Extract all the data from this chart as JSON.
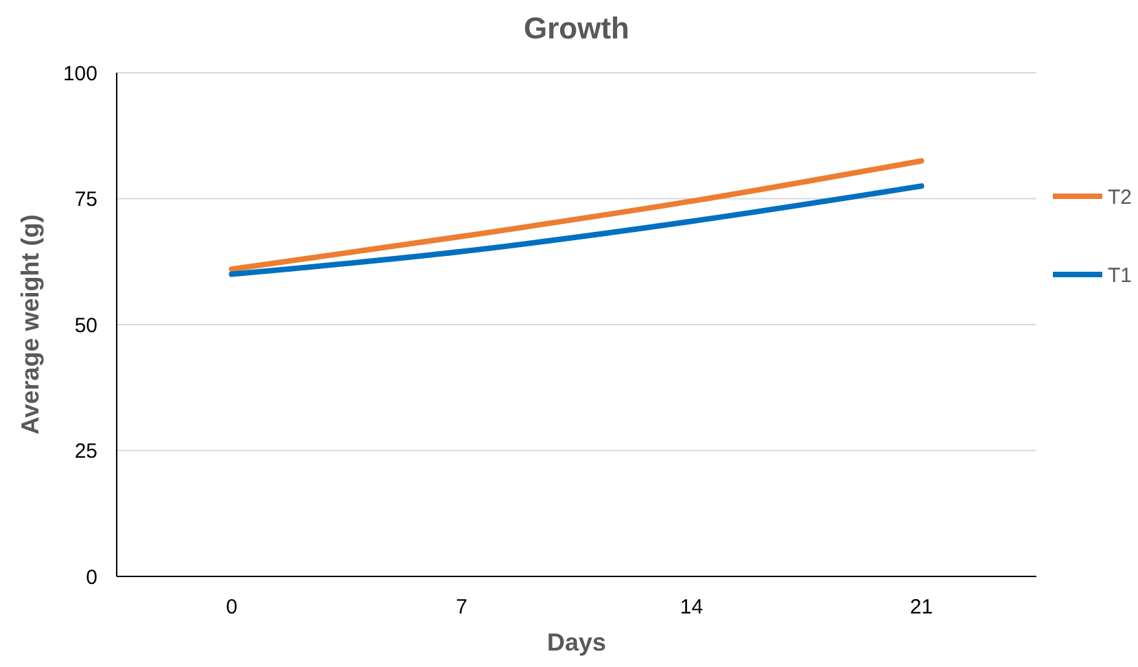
{
  "chart_data": {
    "type": "line",
    "title": "Growth",
    "xlabel": "Days",
    "ylabel": "Average weight (g)",
    "categories": [
      "0",
      "7",
      "14",
      "21"
    ],
    "series": [
      {
        "name": "T2",
        "color": "#ed7d31",
        "values": [
          61,
          67.5,
          74.5,
          82.5
        ]
      },
      {
        "name": "T1",
        "color": "#0070c0",
        "values": [
          60,
          64.5,
          70.5,
          77.5
        ]
      }
    ],
    "ylim": [
      0,
      100
    ],
    "yticks": [
      0,
      25,
      50,
      75,
      100
    ],
    "grid": "y",
    "legend": "right",
    "marker": "none",
    "line_style": "solid"
  }
}
